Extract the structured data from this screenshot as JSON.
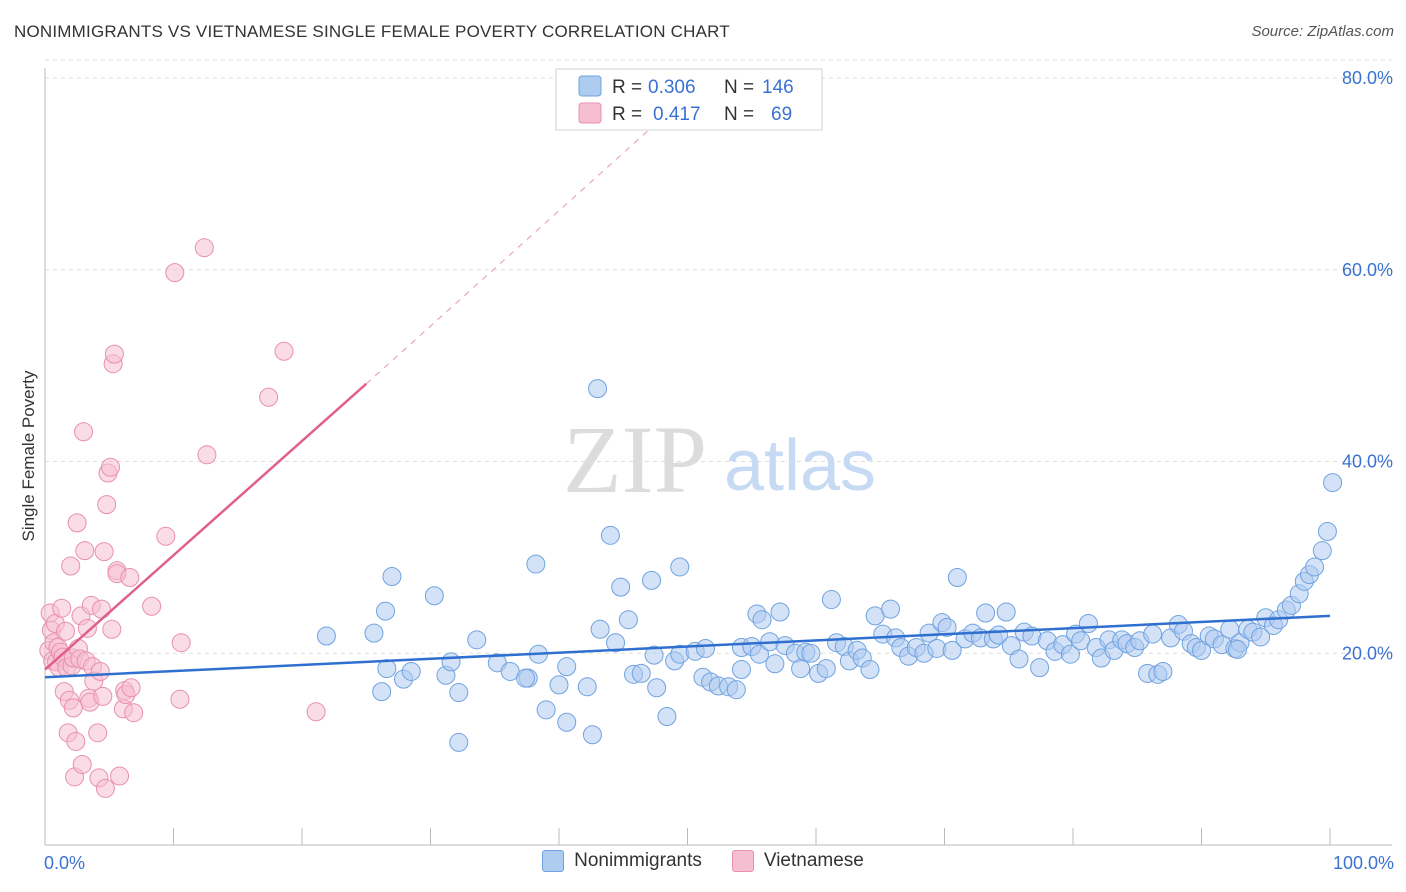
{
  "title": "NONIMMIGRANTS VS VIETNAMESE SINGLE FEMALE POVERTY CORRELATION CHART",
  "source": "Source: ZipAtlas.com",
  "watermark": {
    "zip": "ZIP",
    "atlas": "atlas"
  },
  "chart_data": {
    "type": "scatter",
    "title": "NONIMMIGRANTS VS VIETNAMESE SINGLE FEMALE POVERTY CORRELATION CHART",
    "xlabel": "",
    "ylabel": "Single Female Poverty",
    "xlim": [
      0,
      100
    ],
    "ylim": [
      0,
      80
    ],
    "x_tick_labels": {
      "min": "0.0%",
      "max": "100.0%"
    },
    "y_ticks": [
      {
        "value": 20,
        "label": "20.0%"
      },
      {
        "value": 40,
        "label": "40.0%"
      },
      {
        "value": 60,
        "label": "60.0%"
      },
      {
        "value": 80,
        "label": "80.0%"
      }
    ],
    "grid": true,
    "legend_position": "top-center",
    "stats": [
      {
        "series": "Nonimmigrants",
        "r_label": "R =",
        "r_value": "0.306",
        "n_label": "N =",
        "n_value": "146"
      },
      {
        "series": "Vietnamese",
        "r_label": "R =",
        "r_value": "0.417",
        "n_label": "N =",
        "n_value": "69"
      }
    ],
    "series": [
      {
        "name": "Nonimmigrants",
        "color": "#6fa3e0",
        "fill": "#aecbf0",
        "line_color": "#2f6fd0",
        "trendline": {
          "x0": 0,
          "y0": 17.5,
          "x1": 100,
          "y1": 23.9
        },
        "points": [
          [
            21.9,
            21.8
          ],
          [
            25.6,
            22.1
          ],
          [
            26.2,
            16
          ],
          [
            26.5,
            24.4
          ],
          [
            26.6,
            18.4
          ],
          [
            27,
            28
          ],
          [
            27.9,
            17.3
          ],
          [
            28.5,
            18.1
          ],
          [
            30.3,
            26
          ],
          [
            31.2,
            17.7
          ],
          [
            31.6,
            19.1
          ],
          [
            32.2,
            15.9
          ],
          [
            32.2,
            10.7
          ],
          [
            33.6,
            21.4
          ],
          [
            35.2,
            19
          ],
          [
            36.2,
            18.1
          ],
          [
            37.6,
            17.4
          ],
          [
            37.4,
            17.4
          ],
          [
            38.4,
            19.9
          ],
          [
            38.2,
            29.3
          ],
          [
            39,
            14.1
          ],
          [
            40,
            16.7
          ],
          [
            40.6,
            18.6
          ],
          [
            40.6,
            12.8
          ],
          [
            42.2,
            16.5
          ],
          [
            42.6,
            11.5
          ],
          [
            43,
            47.6
          ],
          [
            43.2,
            22.5
          ],
          [
            44,
            32.3
          ],
          [
            44.4,
            21.1
          ],
          [
            44.8,
            26.9
          ],
          [
            45.4,
            23.5
          ],
          [
            45.8,
            17.8
          ],
          [
            46.4,
            17.9
          ],
          [
            47.2,
            27.6
          ],
          [
            47.4,
            19.8
          ],
          [
            47.6,
            16.4
          ],
          [
            48.4,
            13.4
          ],
          [
            49,
            19.2
          ],
          [
            49.4,
            29
          ],
          [
            49.4,
            19.9
          ],
          [
            50.6,
            20.2
          ],
          [
            51.2,
            17.5
          ],
          [
            51.4,
            20.5
          ],
          [
            51.8,
            17
          ],
          [
            52.4,
            16.6
          ],
          [
            53.2,
            16.5
          ],
          [
            53.8,
            16.2
          ],
          [
            54.2,
            18.3
          ],
          [
            54.2,
            20.6
          ],
          [
            55,
            20.7
          ],
          [
            55.4,
            24.1
          ],
          [
            55.6,
            19.9
          ],
          [
            55.8,
            23.5
          ],
          [
            56.4,
            21.2
          ],
          [
            56.8,
            18.9
          ],
          [
            57.2,
            24.3
          ],
          [
            57.6,
            20.8
          ],
          [
            58.4,
            20
          ],
          [
            58.8,
            18.4
          ],
          [
            59.2,
            20.1
          ],
          [
            59.6,
            20
          ],
          [
            60.2,
            17.9
          ],
          [
            60.8,
            18.4
          ],
          [
            61.2,
            25.6
          ],
          [
            61.6,
            21.1
          ],
          [
            62.2,
            20.7
          ],
          [
            62.6,
            19.2
          ],
          [
            63.2,
            20.3
          ],
          [
            63.6,
            19.5
          ],
          [
            64.2,
            18.3
          ],
          [
            64.6,
            23.9
          ],
          [
            65.2,
            22
          ],
          [
            65.8,
            24.6
          ],
          [
            66.2,
            21.6
          ],
          [
            66.6,
            20.6
          ],
          [
            67.2,
            19.7
          ],
          [
            67.8,
            20.6
          ],
          [
            68.4,
            20
          ],
          [
            68.8,
            22.1
          ],
          [
            69.4,
            20.5
          ],
          [
            69.8,
            23.2
          ],
          [
            70.2,
            22.7
          ],
          [
            70.6,
            20.3
          ],
          [
            71,
            27.9
          ],
          [
            71.6,
            21.5
          ],
          [
            72.2,
            22.1
          ],
          [
            72.8,
            21.6
          ],
          [
            73.2,
            24.2
          ],
          [
            73.8,
            21.5
          ],
          [
            74.2,
            21.9
          ],
          [
            74.8,
            24.3
          ],
          [
            75.2,
            20.8
          ],
          [
            75.8,
            19.4
          ],
          [
            76.2,
            22.2
          ],
          [
            76.8,
            21.8
          ],
          [
            77.4,
            18.5
          ],
          [
            78,
            21.3
          ],
          [
            78.6,
            20.2
          ],
          [
            79.2,
            20.9
          ],
          [
            79.8,
            19.9
          ],
          [
            80.2,
            22
          ],
          [
            80.6,
            21.3
          ],
          [
            81.2,
            23.1
          ],
          [
            81.8,
            20.6
          ],
          [
            82.2,
            19.5
          ],
          [
            82.8,
            21.4
          ],
          [
            83.2,
            20.3
          ],
          [
            83.8,
            21.4
          ],
          [
            84.2,
            21
          ],
          [
            84.8,
            20.6
          ],
          [
            85.2,
            21.3
          ],
          [
            85.8,
            17.9
          ],
          [
            86.2,
            22
          ],
          [
            86.6,
            17.8
          ],
          [
            87,
            18.1
          ],
          [
            87.6,
            21.6
          ],
          [
            88.2,
            23
          ],
          [
            88.6,
            22.3
          ],
          [
            89.2,
            21
          ],
          [
            89.6,
            20.6
          ],
          [
            90,
            20.3
          ],
          [
            90.6,
            21.8
          ],
          [
            91,
            21.5
          ],
          [
            91.6,
            20.9
          ],
          [
            92.2,
            22.5
          ],
          [
            92.6,
            20.5
          ],
          [
            93,
            21.1
          ],
          [
            93.6,
            22.5
          ],
          [
            94,
            22.2
          ],
          [
            94.6,
            21.7
          ],
          [
            95,
            23.7
          ],
          [
            95.6,
            22.9
          ],
          [
            96,
            23.5
          ],
          [
            96.6,
            24.5
          ],
          [
            97,
            25
          ],
          [
            97.6,
            26.2
          ],
          [
            98,
            27.5
          ],
          [
            98.4,
            28.2
          ],
          [
            98.8,
            29
          ],
          [
            99.4,
            30.7
          ],
          [
            99.8,
            32.7
          ],
          [
            100.2,
            37.8
          ],
          [
            92.8,
            20.4
          ]
        ]
      },
      {
        "name": "Vietnamese",
        "color": "#e890ad",
        "fill": "#f5bfd1",
        "line_color": "#e0608a",
        "trendline": {
          "x0": 0,
          "y0": 18.3,
          "x1": 25,
          "y1": 48.1,
          "ext_x1": 50,
          "ext_y1": 78.2
        },
        "points": [
          [
            0.3,
            20.3
          ],
          [
            0.4,
            24.2
          ],
          [
            0.5,
            22.4
          ],
          [
            0.6,
            19.2
          ],
          [
            0.7,
            21.1
          ],
          [
            0.8,
            23.1
          ],
          [
            0.9,
            19.1
          ],
          [
            1,
            20.6
          ],
          [
            1.1,
            18.5
          ],
          [
            1.2,
            20.1
          ],
          [
            1.3,
            24.7
          ],
          [
            1.4,
            19.6
          ],
          [
            1.5,
            16
          ],
          [
            1.6,
            22.3
          ],
          [
            1.7,
            18.5
          ],
          [
            1.8,
            11.7
          ],
          [
            1.9,
            15.1
          ],
          [
            2,
            29.1
          ],
          [
            2.1,
            18.7
          ],
          [
            2.2,
            19.5
          ],
          [
            2.2,
            14.3
          ],
          [
            2.3,
            7.1
          ],
          [
            2.4,
            10.8
          ],
          [
            2.5,
            33.6
          ],
          [
            2.6,
            20.5
          ],
          [
            2.7,
            19.4
          ],
          [
            2.8,
            23.9
          ],
          [
            2.9,
            8.4
          ],
          [
            3,
            43.1
          ],
          [
            3.1,
            30.7
          ],
          [
            3.2,
            19.2
          ],
          [
            3.3,
            22.6
          ],
          [
            3.4,
            15.3
          ],
          [
            3.5,
            14.9
          ],
          [
            3.6,
            25
          ],
          [
            3.7,
            18.6
          ],
          [
            3.8,
            17.1
          ],
          [
            4.1,
            11.7
          ],
          [
            4.2,
            7
          ],
          [
            4.3,
            18.1
          ],
          [
            4.4,
            24.6
          ],
          [
            4.5,
            15.5
          ],
          [
            4.6,
            30.6
          ],
          [
            4.7,
            5.9
          ],
          [
            4.8,
            35.5
          ],
          [
            4.9,
            38.8
          ],
          [
            5.1,
            39.4
          ],
          [
            5.2,
            22.5
          ],
          [
            5.3,
            50.2
          ],
          [
            5.4,
            51.2
          ],
          [
            5.6,
            28.6
          ],
          [
            5.6,
            28.3
          ],
          [
            5.8,
            7.2
          ],
          [
            6.1,
            14.2
          ],
          [
            6.2,
            16.1
          ],
          [
            6.3,
            15.7
          ],
          [
            6.6,
            27.9
          ],
          [
            6.7,
            16.4
          ],
          [
            6.9,
            13.8
          ],
          [
            8.3,
            24.9
          ],
          [
            9.4,
            32.2
          ],
          [
            10.1,
            59.7
          ],
          [
            10.5,
            15.2
          ],
          [
            10.6,
            21.1
          ],
          [
            12.4,
            62.3
          ],
          [
            12.6,
            40.7
          ],
          [
            17.4,
            46.7
          ],
          [
            18.6,
            51.5
          ],
          [
            21.1,
            13.9
          ]
        ]
      }
    ]
  }
}
